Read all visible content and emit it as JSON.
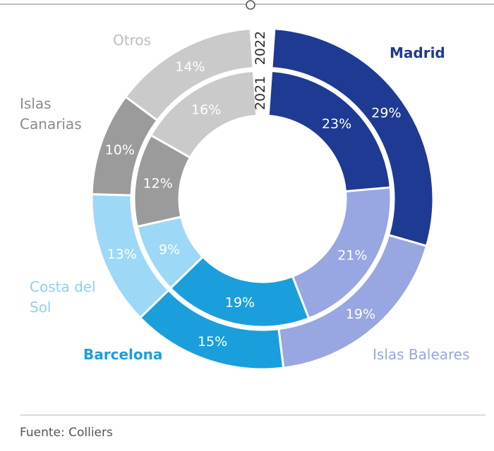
{
  "chart_data": {
    "type": "donut",
    "rings": [
      {
        "year": "2021",
        "values": [
          23,
          21,
          19,
          9,
          12,
          16
        ]
      },
      {
        "year": "2022",
        "values": [
          29,
          19,
          15,
          13,
          10,
          14
        ]
      }
    ],
    "categories": [
      {
        "name": "Madrid",
        "lines": [
          "Madrid"
        ],
        "color": "#1f3a93",
        "label_color": "#1f3a93",
        "bold": false
      },
      {
        "name": "Islas Baleares",
        "lines": [
          "Islas Baleares"
        ],
        "color": "#98a6e2",
        "label_color": "#98a6e2",
        "bold": false
      },
      {
        "name": "Barcelona",
        "lines": [
          "Barcelona"
        ],
        "color": "#1a9fdc",
        "label_color": "#1a9fdc",
        "bold": false
      },
      {
        "name": "Costa del Sol",
        "lines": [
          "Costa del",
          "Sol"
        ],
        "color": "#9dd8f6",
        "label_color": "#8ecff2",
        "bold": false
      },
      {
        "name": "Islas Canarias",
        "lines": [
          "Islas",
          "Canarias"
        ],
        "color": "#9b9b9b",
        "label_color": "#8a8a8a",
        "bold": false
      },
      {
        "name": "Otros",
        "lines": [
          "Otros"
        ],
        "color": "#cacaca",
        "label_color": "#bdbdbd",
        "bold": false
      }
    ],
    "value_suffix": "%"
  },
  "source": "Fuente: Colliers"
}
